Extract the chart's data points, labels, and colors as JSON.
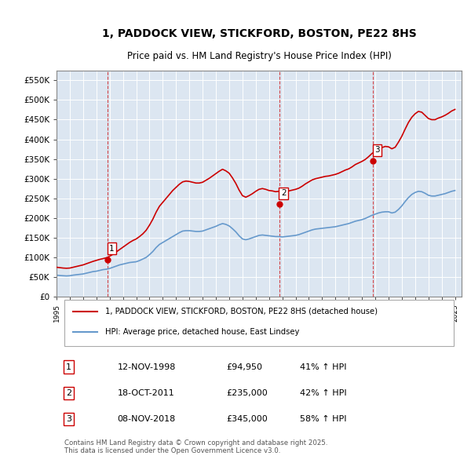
{
  "title_line1": "1, PADDOCK VIEW, STICKFORD, BOSTON, PE22 8HS",
  "title_line2": "Price paid vs. HM Land Registry's House Price Index (HPI)",
  "legend_line1": "1, PADDOCK VIEW, STICKFORD, BOSTON, PE22 8HS (detached house)",
  "legend_line2": "HPI: Average price, detached house, East Lindsey",
  "footer_line1": "Contains HM Land Registry data © Crown copyright and database right 2025.",
  "footer_line2": "This data is licensed under the Open Government Licence v3.0.",
  "sale_color": "#cc0000",
  "hpi_color": "#6699cc",
  "background_color": "#dce6f1",
  "plot_bg_color": "#dce6f1",
  "ylim": [
    0,
    575000
  ],
  "yticks": [
    0,
    50000,
    100000,
    150000,
    200000,
    250000,
    300000,
    350000,
    400000,
    450000,
    500000,
    550000
  ],
  "ytick_labels": [
    "£0",
    "£50K",
    "£100K",
    "£150K",
    "£200K",
    "£250K",
    "£300K",
    "£350K",
    "£400K",
    "£450K",
    "£500K",
    "£550K"
  ],
  "sale_points": [
    {
      "date": 1998.87,
      "price": 94950,
      "label": "1"
    },
    {
      "date": 2011.8,
      "price": 235000,
      "label": "2"
    },
    {
      "date": 2018.85,
      "price": 345000,
      "label": "3"
    }
  ],
  "table_rows": [
    {
      "num": "1",
      "date": "12-NOV-1998",
      "price": "£94,950",
      "change": "41% ↑ HPI"
    },
    {
      "num": "2",
      "date": "18-OCT-2011",
      "price": "£235,000",
      "change": "42% ↑ HPI"
    },
    {
      "num": "3",
      "date": "08-NOV-2018",
      "price": "£345,000",
      "change": "58% ↑ HPI"
    }
  ],
  "hpi_data": {
    "dates": [
      1995.0,
      1995.25,
      1995.5,
      1995.75,
      1996.0,
      1996.25,
      1996.5,
      1996.75,
      1997.0,
      1997.25,
      1997.5,
      1997.75,
      1998.0,
      1998.25,
      1998.5,
      1998.75,
      1999.0,
      1999.25,
      1999.5,
      1999.75,
      2000.0,
      2000.25,
      2000.5,
      2000.75,
      2001.0,
      2001.25,
      2001.5,
      2001.75,
      2002.0,
      2002.25,
      2002.5,
      2002.75,
      2003.0,
      2003.25,
      2003.5,
      2003.75,
      2004.0,
      2004.25,
      2004.5,
      2004.75,
      2005.0,
      2005.25,
      2005.5,
      2005.75,
      2006.0,
      2006.25,
      2006.5,
      2006.75,
      2007.0,
      2007.25,
      2007.5,
      2007.75,
      2008.0,
      2008.25,
      2008.5,
      2008.75,
      2009.0,
      2009.25,
      2009.5,
      2009.75,
      2010.0,
      2010.25,
      2010.5,
      2010.75,
      2011.0,
      2011.25,
      2011.5,
      2011.75,
      2012.0,
      2012.25,
      2012.5,
      2012.75,
      2013.0,
      2013.25,
      2013.5,
      2013.75,
      2014.0,
      2014.25,
      2014.5,
      2014.75,
      2015.0,
      2015.25,
      2015.5,
      2015.75,
      2016.0,
      2016.25,
      2016.5,
      2016.75,
      2017.0,
      2017.25,
      2017.5,
      2017.75,
      2018.0,
      2018.25,
      2018.5,
      2018.75,
      2019.0,
      2019.25,
      2019.5,
      2019.75,
      2020.0,
      2020.25,
      2020.5,
      2020.75,
      2021.0,
      2021.25,
      2021.5,
      2021.75,
      2022.0,
      2022.25,
      2022.5,
      2022.75,
      2023.0,
      2023.25,
      2023.5,
      2023.75,
      2024.0,
      2024.25,
      2024.5,
      2024.75,
      2025.0
    ],
    "values": [
      55000,
      54000,
      53500,
      53000,
      53500,
      55000,
      56000,
      57000,
      58000,
      60000,
      62000,
      64000,
      65000,
      67000,
      69000,
      70000,
      72000,
      75000,
      78000,
      81000,
      83000,
      85000,
      87000,
      88000,
      89000,
      92000,
      96000,
      100000,
      107000,
      115000,
      125000,
      133000,
      138000,
      143000,
      148000,
      153000,
      158000,
      163000,
      167000,
      168000,
      168000,
      167000,
      166000,
      166000,
      167000,
      170000,
      173000,
      176000,
      179000,
      183000,
      186000,
      184000,
      180000,
      173000,
      165000,
      155000,
      147000,
      145000,
      147000,
      150000,
      153000,
      156000,
      157000,
      156000,
      155000,
      154000,
      153000,
      153000,
      152000,
      153000,
      154000,
      155000,
      156000,
      158000,
      161000,
      164000,
      167000,
      170000,
      172000,
      173000,
      174000,
      175000,
      176000,
      177000,
      178000,
      180000,
      182000,
      184000,
      186000,
      189000,
      192000,
      194000,
      196000,
      199000,
      203000,
      207000,
      210000,
      213000,
      215000,
      216000,
      216000,
      213000,
      215000,
      222000,
      231000,
      242000,
      252000,
      260000,
      265000,
      268000,
      267000,
      263000,
      258000,
      256000,
      256000,
      258000,
      260000,
      262000,
      265000,
      268000,
      270000
    ]
  },
  "sale_line_data": {
    "dates": [
      1995.0,
      1995.25,
      1995.5,
      1995.75,
      1996.0,
      1996.25,
      1996.5,
      1996.75,
      1997.0,
      1997.25,
      1997.5,
      1997.75,
      1998.0,
      1998.25,
      1998.5,
      1998.75,
      1999.0,
      1999.25,
      1999.5,
      1999.75,
      2000.0,
      2000.25,
      2000.5,
      2000.75,
      2001.0,
      2001.25,
      2001.5,
      2001.75,
      2002.0,
      2002.25,
      2002.5,
      2002.75,
      2003.0,
      2003.25,
      2003.5,
      2003.75,
      2004.0,
      2004.25,
      2004.5,
      2004.75,
      2005.0,
      2005.25,
      2005.5,
      2005.75,
      2006.0,
      2006.25,
      2006.5,
      2006.75,
      2007.0,
      2007.25,
      2007.5,
      2007.75,
      2008.0,
      2008.25,
      2008.5,
      2008.75,
      2009.0,
      2009.25,
      2009.5,
      2009.75,
      2010.0,
      2010.25,
      2010.5,
      2010.75,
      2011.0,
      2011.25,
      2011.5,
      2011.75,
      2012.0,
      2012.25,
      2012.5,
      2012.75,
      2013.0,
      2013.25,
      2013.5,
      2013.75,
      2014.0,
      2014.25,
      2014.5,
      2014.75,
      2015.0,
      2015.25,
      2015.5,
      2015.75,
      2016.0,
      2016.25,
      2016.5,
      2016.75,
      2017.0,
      2017.25,
      2017.5,
      2017.75,
      2018.0,
      2018.25,
      2018.5,
      2018.75,
      2019.0,
      2019.25,
      2019.5,
      2019.75,
      2020.0,
      2020.25,
      2020.5,
      2020.75,
      2021.0,
      2021.25,
      2021.5,
      2021.75,
      2022.0,
      2022.25,
      2022.5,
      2022.75,
      2023.0,
      2023.25,
      2023.5,
      2023.75,
      2024.0,
      2024.25,
      2024.5,
      2024.75,
      2025.0
    ],
    "values": [
      75000,
      74000,
      73000,
      72500,
      73000,
      75000,
      77000,
      79000,
      81000,
      84000,
      87000,
      90000,
      92500,
      95000,
      97000,
      99000,
      103000,
      108000,
      114000,
      120000,
      126000,
      132000,
      138000,
      143000,
      147000,
      153000,
      160000,
      169000,
      182000,
      197000,
      215000,
      230000,
      240000,
      250000,
      260000,
      270000,
      278000,
      286000,
      292000,
      294000,
      293000,
      291000,
      289000,
      289000,
      291000,
      296000,
      301000,
      307000,
      313000,
      319000,
      324000,
      320000,
      314000,
      302000,
      288000,
      271000,
      257000,
      253000,
      257000,
      262000,
      268000,
      273000,
      275000,
      273000,
      270000,
      269000,
      267000,
      268000,
      266000,
      268000,
      269000,
      271000,
      273000,
      276000,
      281000,
      287000,
      292000,
      297000,
      300000,
      302000,
      304000,
      306000,
      307000,
      309000,
      311000,
      314000,
      318000,
      322000,
      325000,
      330000,
      336000,
      340000,
      344000,
      349000,
      356000,
      364000,
      369000,
      374000,
      379000,
      382000,
      381000,
      376000,
      380000,
      393000,
      408000,
      426000,
      443000,
      456000,
      465000,
      471000,
      469000,
      461000,
      453000,
      450000,
      450000,
      454000,
      457000,
      461000,
      466000,
      472000,
      476000
    ]
  }
}
